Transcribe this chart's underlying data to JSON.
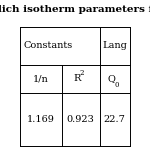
{
  "title": "lich isotherm parameters f",
  "header_row1_left": "Constants",
  "header_row1_right": "Lang",
  "header_row2": [
    "1/n",
    "R2",
    "Q0"
  ],
  "data_row": [
    "1.169",
    "0.923",
    "22.7"
  ],
  "bg_color": "#ffffff",
  "text_color": "#000000",
  "font_size": 7,
  "title_font_size": 7.5
}
